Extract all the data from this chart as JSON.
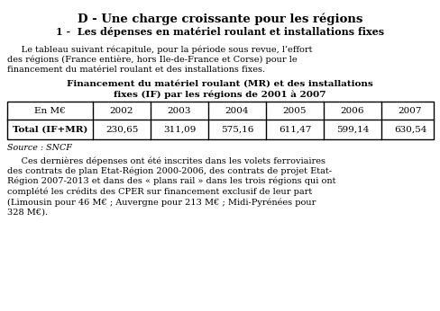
{
  "title": "D - Une charge croissante pour les régions",
  "subtitle": "1 -  Les dépenses en matériel roulant et installations fixes",
  "paragraph1_lines": [
    "     Le tableau suivant récapitule, pour la période sous revue, l’effort",
    "des régions (France entière, hors Ile-de-France et Corse) pour le",
    "financement du matériel roulant et des installations fixes."
  ],
  "table_title_line1": "Financement du matériel roulant (MR) et des installations",
  "table_title_line2": "fixes (IF) par les régions de 2001 à 2007",
  "col_headers": [
    "En M€",
    "2002",
    "2003",
    "2004",
    "2005",
    "2006",
    "2007"
  ],
  "row_label": "Total (IF+MR)",
  "row_values": [
    "230,65",
    "311,09",
    "575,16",
    "611,47",
    "599,14",
    "630,54"
  ],
  "source": "Source : SNCF",
  "paragraph2_lines": [
    "     Ces dernières dépenses ont été inscrites dans les volets ferroviaires",
    "des contrats de plan Etat-Région 2000-2006, des contrats de projet Etat-",
    "Région 2007-2013 et dans des « plans rail » dans les trois régions qui ont",
    "complété les crédits des CPER sur financement exclusif de leur part",
    "(Limousin pour 46 M€ ; Auvergne pour 213 M€ ; Midi-Pyrénées pour",
    "328 M€)."
  ],
  "bg_color": "#ffffff",
  "text_color": "#000000",
  "figsize": [
    4.89,
    3.46
  ],
  "dpi": 100
}
